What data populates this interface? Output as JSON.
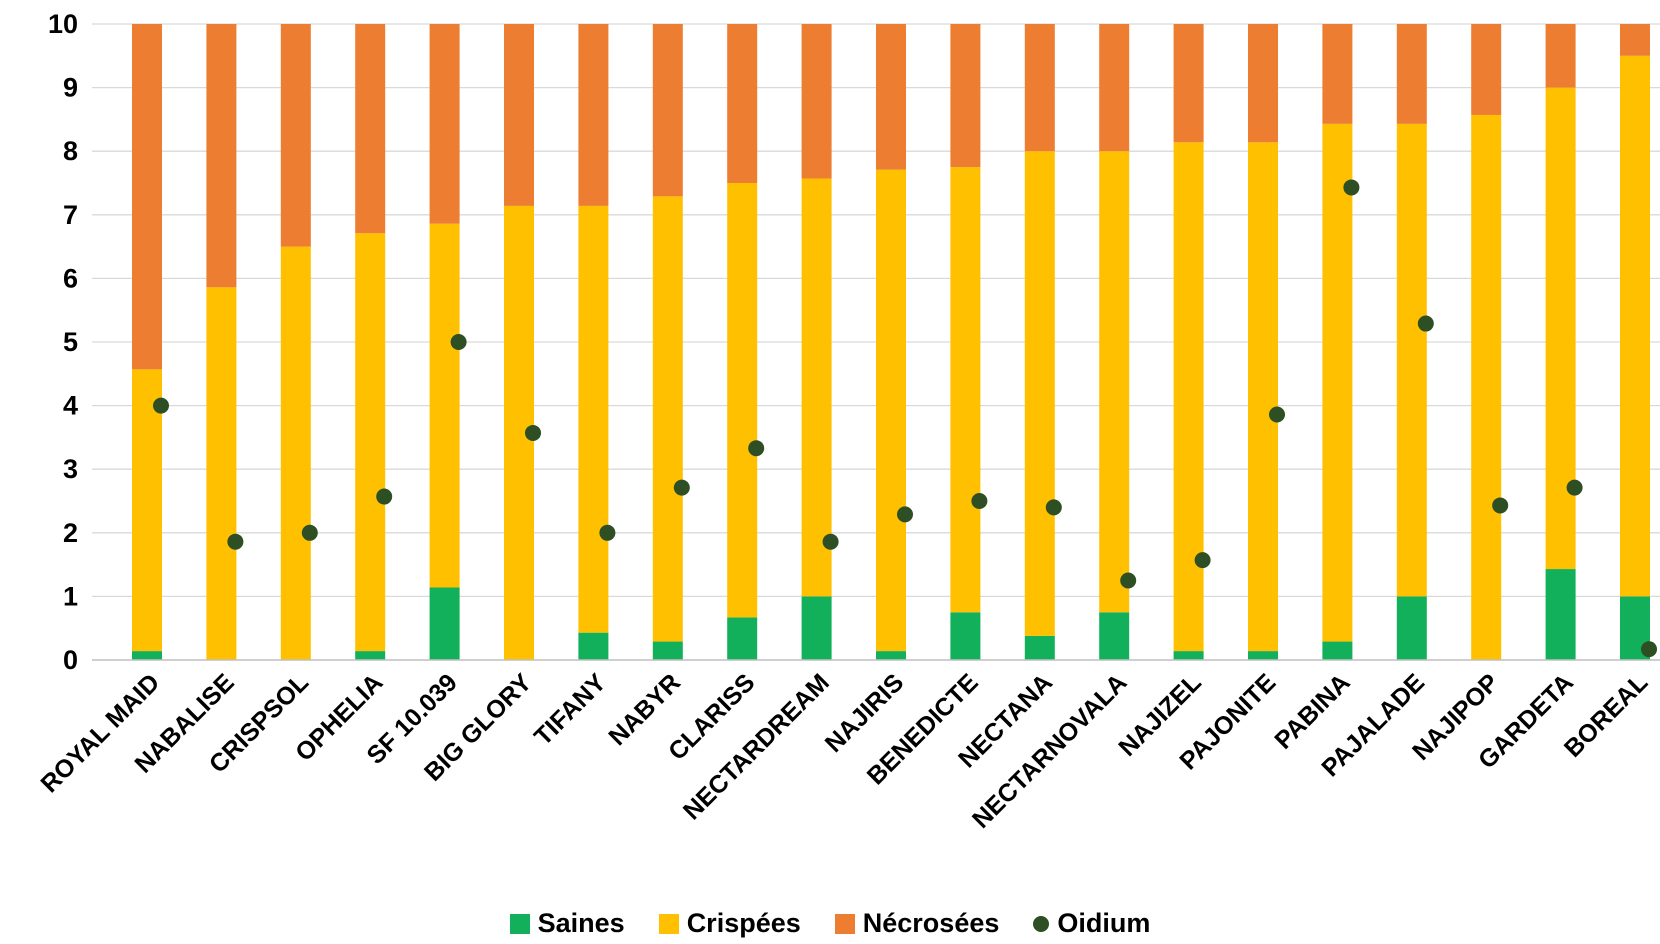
{
  "colors": {
    "saines": "#12b05a",
    "crispees": "#ffc000",
    "necrosees": "#ed7d31",
    "oidium": "#2d4f23",
    "grid": "#d9d9d9",
    "axis": "#bfbfbf"
  },
  "chart_data": {
    "type": "bar",
    "stacked": true,
    "ylim": [
      0,
      10
    ],
    "yticks": [
      "0",
      "1",
      "2",
      "3",
      "4",
      "5",
      "6",
      "7",
      "8",
      "9",
      "10"
    ],
    "grid": true,
    "legend_position": "bottom",
    "categories": [
      "ROYAL MAID",
      "NABALISE",
      "CRISPSOL",
      "OPHELIA",
      "SF 10.039",
      "BIG GLORY",
      "TIFANY",
      "NABYR",
      "CLARISS",
      "NECTARDREAM",
      "NAJIRIS",
      "BENEDICTE",
      "NECTANA",
      "NECTARNOVALA",
      "NAJIZEL",
      "PAJONITE",
      "PABINA",
      "PAJALADE",
      "NAJIPOP",
      "GARDETA",
      "BOREAL"
    ],
    "series": [
      {
        "name": "Saines",
        "kind": "bar",
        "values": [
          0.14,
          0,
          0,
          0.14,
          1.14,
          0,
          0.43,
          0.29,
          0.67,
          1.0,
          0.14,
          0.75,
          0.38,
          0.75,
          0.14,
          0.14,
          0.29,
          1.0,
          0,
          1.43,
          1.0
        ]
      },
      {
        "name": "Crispées",
        "kind": "bar",
        "values": [
          4.43,
          5.86,
          6.5,
          6.57,
          5.72,
          7.14,
          6.71,
          7.0,
          6.83,
          6.57,
          7.57,
          7.0,
          7.62,
          7.25,
          8.0,
          8.0,
          8.14,
          7.43,
          8.57,
          7.57,
          8.5
        ]
      },
      {
        "name": "Nécrosées",
        "kind": "bar",
        "values": [
          5.43,
          4.14,
          3.5,
          3.29,
          3.14,
          2.86,
          2.86,
          2.71,
          2.5,
          2.43,
          2.29,
          2.25,
          2.0,
          2.0,
          1.86,
          1.86,
          1.57,
          1.57,
          1.43,
          1.0,
          0.5
        ]
      },
      {
        "name": "Oidium",
        "kind": "point",
        "values": [
          4.0,
          1.86,
          2.0,
          2.57,
          5.0,
          3.57,
          2.0,
          2.71,
          3.33,
          1.86,
          2.29,
          2.5,
          2.4,
          1.25,
          1.57,
          3.86,
          7.43,
          5.29,
          2.43,
          2.71,
          0.17
        ]
      }
    ]
  }
}
